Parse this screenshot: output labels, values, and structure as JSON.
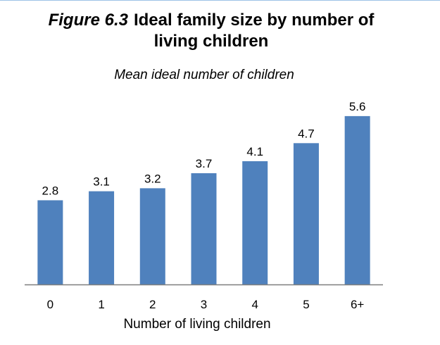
{
  "figure": {
    "number": "Figure 6.3",
    "title_line1": "Ideal family size by number of",
    "title_line2": "living children"
  },
  "chart_data": {
    "type": "bar",
    "title": "Figure 6.3 Ideal family size by number of living children",
    "subtitle": "Mean ideal number of children",
    "xlabel": "Number of living children",
    "ylabel": "",
    "categories": [
      "0",
      "1",
      "2",
      "3",
      "4",
      "5",
      "6+"
    ],
    "values": [
      2.8,
      3.1,
      3.2,
      3.7,
      4.1,
      4.7,
      5.6
    ],
    "data_labels": [
      "2.8",
      "3.1",
      "3.2",
      "3.7",
      "4.1",
      "4.7",
      "5.6"
    ],
    "ylim": [
      0,
      6.3
    ],
    "grid": false,
    "bar_color": "#4f81bd",
    "axis_color": "#7f7f7f"
  }
}
